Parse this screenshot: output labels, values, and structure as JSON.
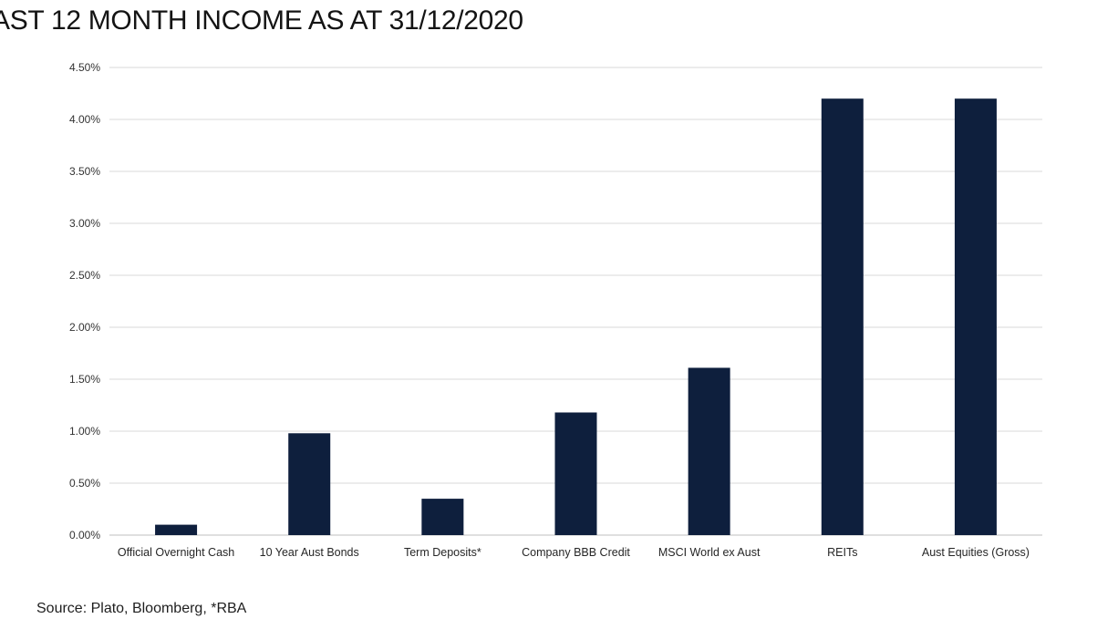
{
  "title": "AST 12 MONTH INCOME AS AT 31/12/2020",
  "source": "Source: Plato, Bloomberg, *RBA",
  "colors": {
    "bar": "#0e1f3d",
    "grid": "#d9d9d9",
    "axis": "#bfbfbf"
  },
  "chart_data": {
    "type": "bar",
    "categories": [
      "Official Overnight Cash",
      "10 Year Aust Bonds",
      "Term Deposits*",
      "Company BBB Credit",
      "MSCI World ex Aust",
      "REITs",
      "Aust Equities (Gross)"
    ],
    "values": [
      0.1,
      0.98,
      0.35,
      1.18,
      1.61,
      4.2,
      4.2
    ],
    "ylim": [
      0,
      4.5
    ],
    "yticks": [
      0,
      0.5,
      1.0,
      1.5,
      2.0,
      2.5,
      3.0,
      3.5,
      4.0,
      4.5
    ],
    "ytick_labels": [
      "0.00%",
      "0.50%",
      "1.00%",
      "1.50%",
      "2.00%",
      "2.50%",
      "3.00%",
      "3.50%",
      "4.00%",
      "4.50%"
    ],
    "grid": true,
    "legend": "none"
  }
}
